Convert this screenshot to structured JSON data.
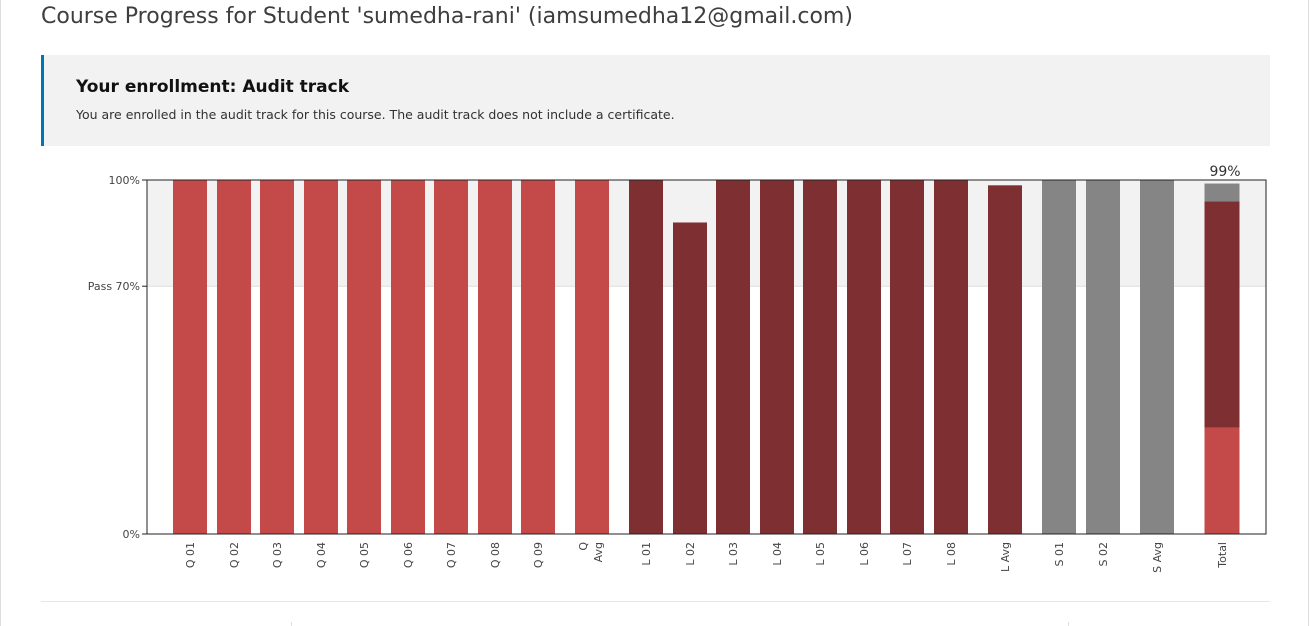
{
  "page": {
    "title": "Course Progress for Student 'sumedha-rani' (iamsumedha12@gmail.com)"
  },
  "enrollment": {
    "heading": "Your enrollment: Audit track",
    "message": "You are enrolled in the audit track for this course. The audit track does not include a certificate."
  },
  "colors": {
    "quiz": "#c44a4a",
    "lab": "#7e2f32",
    "survey": "#858585",
    "pass_band": "#f2f2f2"
  },
  "chart_data": {
    "type": "bar",
    "title": "",
    "xlabel": "",
    "ylabel": "",
    "ylim": [
      0,
      100
    ],
    "y_ticks": [
      {
        "value": 100,
        "label": "100%"
      },
      {
        "value": 70,
        "label": "Pass 70%"
      },
      {
        "value": 0,
        "label": "0%"
      }
    ],
    "pass_threshold": 70,
    "categories": [
      "Q 01",
      "Q 02",
      "Q 03",
      "Q 04",
      "Q 05",
      "Q 06",
      "Q 07",
      "Q 08",
      "Q 09",
      "Q Avg",
      "L 01",
      "L 02",
      "L 03",
      "L 04",
      "L 05",
      "L 06",
      "L 07",
      "L 08",
      "L Avg",
      "S 01",
      "S 02",
      "S Avg",
      "Total"
    ],
    "bars": [
      {
        "label": "Q 01",
        "value": 100,
        "group": "quiz"
      },
      {
        "label": "Q 02",
        "value": 100,
        "group": "quiz"
      },
      {
        "label": "Q 03",
        "value": 100,
        "group": "quiz"
      },
      {
        "label": "Q 04",
        "value": 100,
        "group": "quiz"
      },
      {
        "label": "Q 05",
        "value": 100,
        "group": "quiz"
      },
      {
        "label": "Q 06",
        "value": 100,
        "group": "quiz"
      },
      {
        "label": "Q 07",
        "value": 100,
        "group": "quiz"
      },
      {
        "label": "Q 08",
        "value": 100,
        "group": "quiz"
      },
      {
        "label": "Q 09",
        "value": 100,
        "group": "quiz"
      },
      {
        "label": "Q Avg",
        "value": 100,
        "group": "quiz"
      },
      {
        "label": "L 01",
        "value": 100,
        "group": "lab"
      },
      {
        "label": "L 02",
        "value": 88,
        "group": "lab"
      },
      {
        "label": "L 03",
        "value": 100,
        "group": "lab"
      },
      {
        "label": "L 04",
        "value": 100,
        "group": "lab"
      },
      {
        "label": "L 05",
        "value": 100,
        "group": "lab"
      },
      {
        "label": "L 06",
        "value": 100,
        "group": "lab"
      },
      {
        "label": "L 07",
        "value": 100,
        "group": "lab"
      },
      {
        "label": "L 08",
        "value": 100,
        "group": "lab"
      },
      {
        "label": "L Avg",
        "value": 98.5,
        "group": "lab"
      }
    ],
    "survey_bars": [
      {
        "label": "S 01",
        "value": 100,
        "group": "survey"
      },
      {
        "label": "S 02",
        "value": 100,
        "group": "survey"
      },
      {
        "label": "S Avg",
        "value": 100,
        "group": "survey"
      }
    ],
    "total": {
      "label": "Total",
      "value_label": "99%",
      "segments": [
        {
          "group": "quiz",
          "value": 30
        },
        {
          "group": "lab",
          "value": 64
        },
        {
          "group": "survey",
          "value": 5
        }
      ]
    }
  }
}
